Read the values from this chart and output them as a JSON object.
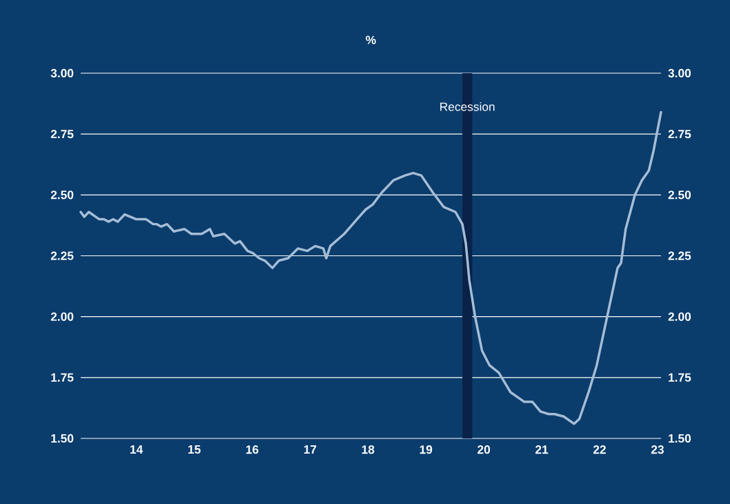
{
  "chart_data": {
    "type": "line",
    "title": "%",
    "x": [
      13.04,
      13.1,
      13.18,
      13.36,
      13.44,
      13.52,
      13.6,
      13.68,
      13.8,
      14.0,
      14.17,
      14.29,
      14.35,
      14.43,
      14.53,
      14.65,
      14.83,
      14.95,
      15.13,
      15.27,
      15.33,
      15.52,
      15.7,
      15.79,
      15.92,
      16.02,
      16.12,
      16.22,
      16.35,
      16.46,
      16.62,
      16.79,
      16.95,
      17.09,
      17.23,
      17.28,
      17.35,
      17.59,
      17.81,
      17.96,
      18.08,
      18.24,
      18.44,
      18.64,
      18.78,
      18.92,
      19.12,
      19.31,
      19.51,
      19.63,
      19.69,
      19.75,
      19.85,
      19.97,
      20.1,
      20.26,
      20.46,
      20.7,
      20.84,
      20.98,
      21.12,
      21.22,
      21.38,
      21.56,
      21.65,
      21.81,
      21.95,
      22.13,
      22.31,
      22.37,
      22.45,
      22.61,
      22.73,
      22.85,
      22.93,
      23.06
    ],
    "series": [
      {
        "color": "#a6bdd6",
        "values": [
          2.43,
          2.41,
          2.43,
          2.4,
          2.4,
          2.39,
          2.4,
          2.39,
          2.42,
          2.4,
          2.4,
          2.38,
          2.38,
          2.37,
          2.38,
          2.35,
          2.36,
          2.34,
          2.34,
          2.36,
          2.33,
          2.34,
          2.3,
          2.31,
          2.27,
          2.26,
          2.24,
          2.23,
          2.2,
          2.23,
          2.24,
          2.28,
          2.27,
          2.29,
          2.28,
          2.24,
          2.29,
          2.34,
          2.4,
          2.44,
          2.46,
          2.51,
          2.56,
          2.58,
          2.59,
          2.58,
          2.51,
          2.45,
          2.43,
          2.38,
          2.3,
          2.15,
          2.0,
          1.86,
          1.8,
          1.77,
          1.69,
          1.65,
          1.65,
          1.61,
          1.6,
          1.6,
          1.59,
          1.56,
          1.58,
          1.69,
          1.8,
          2.0,
          2.2,
          2.22,
          2.36,
          2.5,
          2.56,
          2.6,
          2.68,
          2.84
        ]
      }
    ],
    "xlim": [
      13.04,
      23.06
    ],
    "xticks": [
      14,
      15,
      16,
      17,
      18,
      19,
      20,
      21,
      22,
      23
    ],
    "ylim": [
      1.5,
      3.0
    ],
    "yticks": [
      {
        "value": 1.5,
        "label": "1.50"
      },
      {
        "value": 1.75,
        "label": "1.75"
      },
      {
        "value": 2.0,
        "label": "2.00"
      },
      {
        "value": 2.25,
        "label": "2.25"
      },
      {
        "value": 2.5,
        "label": "2.50"
      },
      {
        "value": 2.75,
        "label": "2.75"
      },
      {
        "value": 3.0,
        "label": "3.00"
      }
    ],
    "y2lim": [
      1.5,
      3.0
    ],
    "y2ticks": [
      {
        "value": 1.5,
        "label": "1.50"
      },
      {
        "value": 1.75,
        "label": "1.75"
      },
      {
        "value": 2.0,
        "label": "2.00"
      },
      {
        "value": 2.25,
        "label": "2.25"
      },
      {
        "value": 2.5,
        "label": "2.50"
      },
      {
        "value": 2.75,
        "label": "2.75"
      },
      {
        "value": 3.0,
        "label": "3.00"
      }
    ],
    "bands": [
      {
        "axis": "x",
        "from": 19.63,
        "to": 19.8,
        "label": "Recession",
        "color": "#0a2248"
      }
    ],
    "grid": "y"
  }
}
